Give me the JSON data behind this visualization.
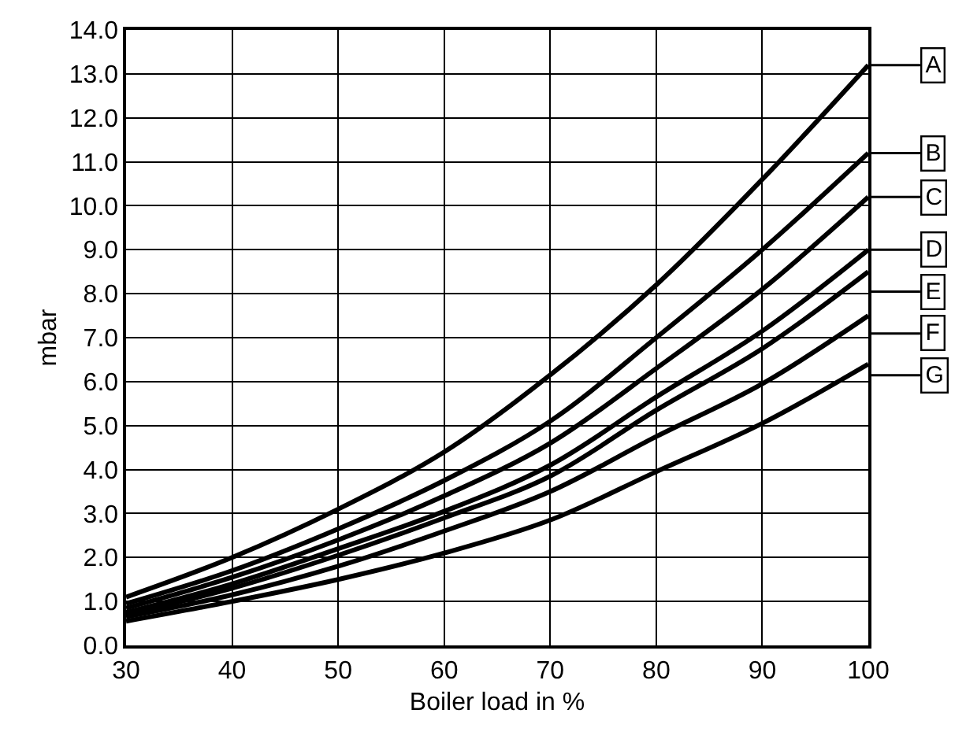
{
  "chart_data": {
    "type": "line",
    "xlabel": "Boiler load in %",
    "ylabel": "mbar",
    "x": [
      30,
      40,
      50,
      60,
      70,
      80,
      90,
      100
    ],
    "series": [
      {
        "name": "A",
        "color": "#000000",
        "values": [
          1.1,
          2.0,
          3.1,
          4.4,
          6.15,
          8.2,
          10.6,
          13.2
        ]
      },
      {
        "name": "B",
        "color": "#000000",
        "values": [
          0.95,
          1.7,
          2.65,
          3.75,
          5.1,
          7.0,
          9.0,
          11.2
        ]
      },
      {
        "name": "C",
        "color": "#000000",
        "values": [
          0.85,
          1.55,
          2.4,
          3.4,
          4.6,
          6.3,
          8.1,
          10.2
        ]
      },
      {
        "name": "D",
        "color": "#000000",
        "values": [
          0.75,
          1.4,
          2.2,
          3.05,
          4.1,
          5.65,
          7.15,
          9.0
        ]
      },
      {
        "name": "E",
        "color": "#000000",
        "values": [
          0.7,
          1.3,
          2.05,
          2.9,
          3.85,
          5.35,
          6.75,
          8.5
        ]
      },
      {
        "name": "F",
        "color": "#000000",
        "values": [
          0.65,
          1.15,
          1.8,
          2.6,
          3.5,
          4.75,
          5.95,
          7.5
        ]
      },
      {
        "name": "G",
        "color": "#000000",
        "values": [
          0.55,
          1.0,
          1.5,
          2.1,
          2.85,
          3.95,
          5.05,
          6.4
        ]
      }
    ],
    "xlim": [
      30,
      100
    ],
    "xticks": [
      30,
      40,
      50,
      60,
      70,
      80,
      90,
      100
    ],
    "ylim": [
      0,
      14
    ],
    "yticks": [
      {
        "value": 0,
        "label": "0.0"
      },
      {
        "value": 1,
        "label": "1.0"
      },
      {
        "value": 2,
        "label": "2.0"
      },
      {
        "value": 3,
        "label": "3.0"
      },
      {
        "value": 4,
        "label": "4.0"
      },
      {
        "value": 5,
        "label": "5.0"
      },
      {
        "value": 6,
        "label": "6.0"
      },
      {
        "value": 7,
        "label": "7.0"
      },
      {
        "value": 8,
        "label": "8.0"
      },
      {
        "value": 9,
        "label": "9.0"
      },
      {
        "value": 10,
        "label": "10.0"
      },
      {
        "value": 11,
        "label": "11.0"
      },
      {
        "value": 12,
        "label": "12.0"
      },
      {
        "value": 13,
        "label": "13.0"
      },
      {
        "value": 14,
        "label": "14.0"
      }
    ],
    "grid": true,
    "legend": "right",
    "marker": "none",
    "line_style": "solid"
  }
}
